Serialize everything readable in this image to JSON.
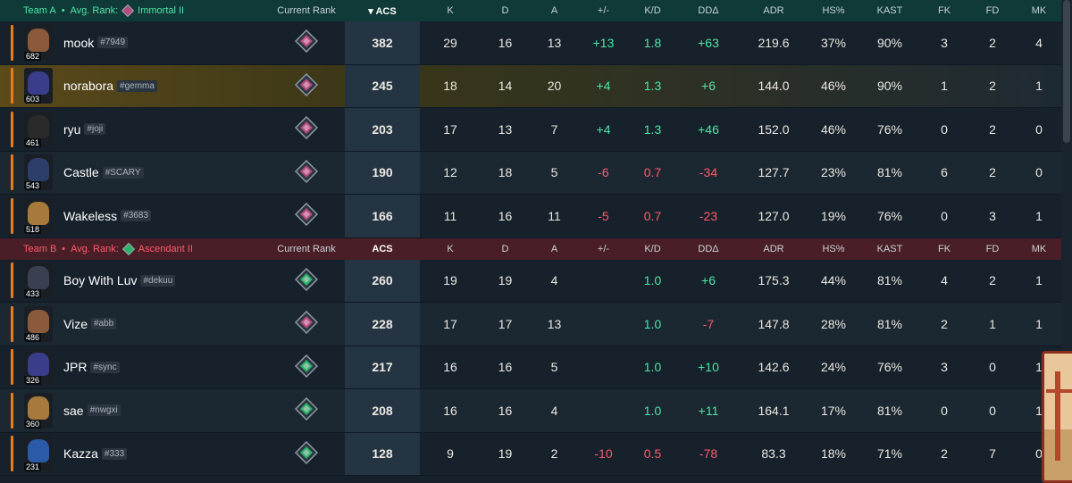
{
  "headers": {
    "current_rank": "Current Rank",
    "acs": "ACS",
    "k": "K",
    "d": "D",
    "a": "A",
    "plus_minus": "+/-",
    "kd": "K/D",
    "dd": "DDΔ",
    "adr": "ADR",
    "hs": "HS%",
    "kast": "KAST",
    "fk": "FK",
    "fd": "FD",
    "mk": "MK"
  },
  "teams": [
    {
      "name": "Team A",
      "avg_label": "Avg. Rank:",
      "avg_rank": "Immortal II",
      "rank_icon": "immortal-rank-icon",
      "players": [
        {
          "name": "mook",
          "tag": "#7949",
          "level": "682",
          "rank": "immortal",
          "acs": "382",
          "k": "29",
          "d": "16",
          "a": "13",
          "pm": "+13",
          "kd": "1.8",
          "dd": "+63",
          "adr": "219.6",
          "hs": "37%",
          "kast": "90%",
          "fk": "3",
          "fd": "2",
          "mk": "4",
          "color": "#8a5a3a"
        },
        {
          "name": "norabora",
          "tag": "#gemma",
          "level": "603",
          "rank": "immortal",
          "acs": "245",
          "k": "18",
          "d": "14",
          "a": "20",
          "pm": "+4",
          "kd": "1.3",
          "dd": "+6",
          "adr": "144.0",
          "hs": "46%",
          "kast": "90%",
          "fk": "1",
          "fd": "2",
          "mk": "1",
          "color": "#3a3d8a"
        },
        {
          "name": "ryu",
          "tag": "#joji",
          "level": "461",
          "rank": "immortal",
          "acs": "203",
          "k": "17",
          "d": "13",
          "a": "7",
          "pm": "+4",
          "kd": "1.3",
          "dd": "+46",
          "adr": "152.0",
          "hs": "46%",
          "kast": "76%",
          "fk": "0",
          "fd": "2",
          "mk": "0",
          "color": "#2a2a2a"
        },
        {
          "name": "Castle",
          "tag": "#SCARY",
          "level": "543",
          "rank": "immortal",
          "acs": "190",
          "k": "12",
          "d": "18",
          "a": "5",
          "pm": "-6",
          "kd": "0.7",
          "dd": "-34",
          "adr": "127.7",
          "hs": "23%",
          "kast": "81%",
          "fk": "6",
          "fd": "2",
          "mk": "0",
          "color": "#2c3f6b"
        },
        {
          "name": "Wakeless",
          "tag": "#3683",
          "level": "518",
          "rank": "immortal",
          "acs": "166",
          "k": "11",
          "d": "16",
          "a": "11",
          "pm": "-5",
          "kd": "0.7",
          "dd": "-23",
          "adr": "127.0",
          "hs": "19%",
          "kast": "76%",
          "fk": "0",
          "fd": "3",
          "mk": "1",
          "color": "#a57a3a"
        }
      ]
    },
    {
      "name": "Team B",
      "avg_label": "Avg. Rank:",
      "avg_rank": "Ascendant II",
      "rank_icon": "ascendant-rank-icon",
      "players": [
        {
          "name": "Boy With Luv",
          "tag": "#dekuu",
          "level": "433",
          "rank": "ascendant",
          "acs": "260",
          "k": "19",
          "d": "19",
          "a": "4",
          "pm": "",
          "kd": "1.0",
          "dd": "+6",
          "adr": "175.3",
          "hs": "44%",
          "kast": "81%",
          "fk": "4",
          "fd": "2",
          "mk": "1",
          "color": "#3a4050"
        },
        {
          "name": "Vize",
          "tag": "#abb",
          "level": "486",
          "rank": "immortal",
          "acs": "228",
          "k": "17",
          "d": "17",
          "a": "13",
          "pm": "",
          "kd": "1.0",
          "dd": "-7",
          "adr": "147.8",
          "hs": "28%",
          "kast": "81%",
          "fk": "2",
          "fd": "1",
          "mk": "1",
          "color": "#8a5a3a"
        },
        {
          "name": "JPR",
          "tag": "#sync",
          "level": "326",
          "rank": "ascendant",
          "acs": "217",
          "k": "16",
          "d": "16",
          "a": "5",
          "pm": "",
          "kd": "1.0",
          "dd": "+10",
          "adr": "142.6",
          "hs": "24%",
          "kast": "76%",
          "fk": "3",
          "fd": "0",
          "mk": "1",
          "color": "#3a3d8a"
        },
        {
          "name": "sae",
          "tag": "#nwgxi",
          "level": "360",
          "rank": "ascendant",
          "acs": "208",
          "k": "16",
          "d": "16",
          "a": "4",
          "pm": "",
          "kd": "1.0",
          "dd": "+11",
          "adr": "164.1",
          "hs": "17%",
          "kast": "81%",
          "fk": "0",
          "fd": "0",
          "mk": "1",
          "color": "#a57a3a"
        },
        {
          "name": "Kazza",
          "tag": "#333",
          "level": "231",
          "rank": "ascendant",
          "acs": "128",
          "k": "9",
          "d": "19",
          "a": "2",
          "pm": "-10",
          "kd": "0.5",
          "dd": "-78",
          "adr": "83.3",
          "hs": "18%",
          "kast": "71%",
          "fk": "2",
          "fd": "7",
          "mk": "0",
          "color": "#2a5aa8"
        }
      ]
    }
  ],
  "colors": {
    "positive": "#4ee6a6",
    "negative": "#ff5a6c",
    "accent": "#e97b1a",
    "team_a_header": "#0f3a37",
    "team_b_header": "#4a1e27"
  }
}
